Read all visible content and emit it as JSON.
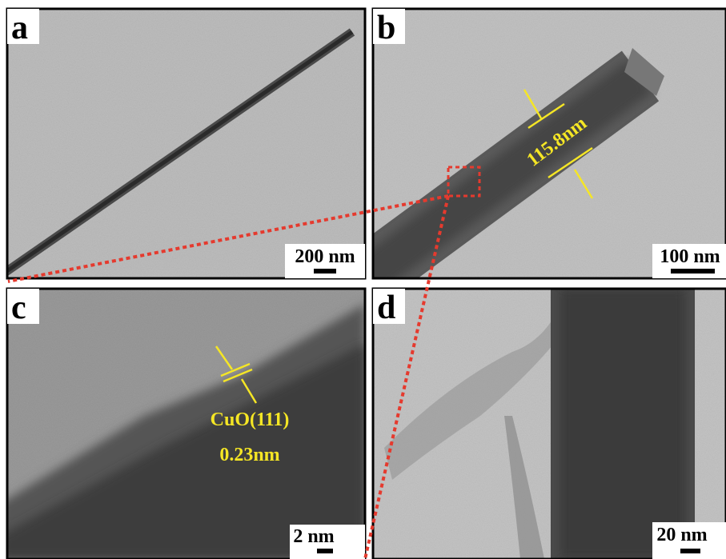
{
  "panels": [
    {
      "label": "a",
      "scale_bar": "200 nm"
    },
    {
      "label": "b",
      "scale_bar": "100 nm",
      "annotation": "115.8nm"
    },
    {
      "label": "c",
      "scale_bar": "2 nm",
      "annotation": [
        "CuO(111)",
        "0.23nm"
      ]
    },
    {
      "label": "d",
      "scale_bar": "20 nm"
    }
  ]
}
